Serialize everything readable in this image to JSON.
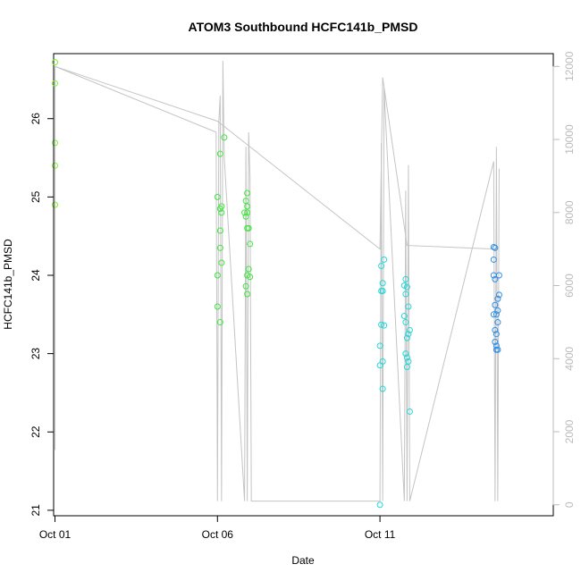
{
  "chart_data": {
    "type": "scatter",
    "title": "ATOM3 Southbound HCFC141b_PMSD",
    "xlabel": "Date",
    "ylabel": "HCFC141b_PMSD",
    "xlim": [
      "2016-09-30T23:00",
      "2016-10-16T08:00"
    ],
    "ylim": [
      20.93,
      26.83
    ],
    "y2lim": [
      -300,
      12350
    ],
    "x_ticks": [
      {
        "label": "Oct 01",
        "value": "2016-10-01T00:00"
      },
      {
        "label": "Oct 06",
        "value": "2016-10-06T00:00"
      },
      {
        "label": "Oct 11",
        "value": "2016-10-11T00:00"
      }
    ],
    "y_ticks": [
      21,
      22,
      23,
      24,
      25,
      26
    ],
    "y2_ticks": [
      0,
      2000,
      4000,
      6000,
      8000,
      10000,
      12000
    ],
    "colors": {
      "frame": "#000000",
      "secondary_axis": "#bbbbbb",
      "secondary_lines": "#c4c4c4",
      "group_1": "#7fef2f",
      "group_2": "#3fe63f",
      "group_3": "#22d8d8",
      "group_4": "#2f8fe6"
    },
    "series": [
      {
        "color": "#7fef2f",
        "points": [
          {
            "x": "2016-10-01T00:00",
            "y": 26.72
          },
          {
            "x": "2016-10-01T00:00",
            "y": 26.45
          },
          {
            "x": "2016-10-01T00:00",
            "y": 25.69
          },
          {
            "x": "2016-10-01T00:00",
            "y": 25.4
          },
          {
            "x": "2016-10-01T00:00",
            "y": 24.9
          }
        ]
      },
      {
        "color": "#3fe63f",
        "points": [
          {
            "x": "2016-10-06T00:00",
            "y": 25.0
          },
          {
            "x": "2016-10-06T02:00",
            "y": 24.85
          },
          {
            "x": "2016-10-06T03:00",
            "y": 24.8
          },
          {
            "x": "2016-10-06T03:00",
            "y": 24.88
          },
          {
            "x": "2016-10-06T02:00",
            "y": 25.55
          },
          {
            "x": "2016-10-06T05:00",
            "y": 25.76
          },
          {
            "x": "2016-10-06T02:00",
            "y": 24.57
          },
          {
            "x": "2016-10-06T02:00",
            "y": 24.35
          },
          {
            "x": "2016-10-06T03:00",
            "y": 24.16
          },
          {
            "x": "2016-10-06T00:00",
            "y": 24.0
          },
          {
            "x": "2016-10-06T00:00",
            "y": 23.6
          },
          {
            "x": "2016-10-06T02:00",
            "y": 23.4
          },
          {
            "x": "2016-10-06T20:00",
            "y": 24.8
          },
          {
            "x": "2016-10-06T21:00",
            "y": 24.75
          },
          {
            "x": "2016-10-06T22:00",
            "y": 24.8
          },
          {
            "x": "2016-10-06T22:00",
            "y": 25.05
          },
          {
            "x": "2016-10-06T21:00",
            "y": 24.95
          },
          {
            "x": "2016-10-06T22:00",
            "y": 24.88
          },
          {
            "x": "2016-10-06T22:00",
            "y": 24.6
          },
          {
            "x": "2016-10-06T23:00",
            "y": 24.6
          },
          {
            "x": "2016-10-07T00:00",
            "y": 24.4
          },
          {
            "x": "2016-10-06T23:00",
            "y": 24.08
          },
          {
            "x": "2016-10-06T22:00",
            "y": 24.0
          },
          {
            "x": "2016-10-07T00:00",
            "y": 23.98
          },
          {
            "x": "2016-10-06T21:00",
            "y": 23.86
          },
          {
            "x": "2016-10-06T22:00",
            "y": 23.76
          }
        ]
      },
      {
        "color": "#22d8d8",
        "points": [
          {
            "x": "2016-10-11T00:00",
            "y": 21.07
          },
          {
            "x": "2016-10-11T02:00",
            "y": 22.55
          },
          {
            "x": "2016-10-11T00:00",
            "y": 22.85
          },
          {
            "x": "2016-10-11T02:00",
            "y": 22.9
          },
          {
            "x": "2016-10-11T00:00",
            "y": 23.1
          },
          {
            "x": "2016-10-11T01:00",
            "y": 23.37
          },
          {
            "x": "2016-10-11T03:00",
            "y": 23.36
          },
          {
            "x": "2016-10-11T01:00",
            "y": 23.8
          },
          {
            "x": "2016-10-11T02:00",
            "y": 23.8
          },
          {
            "x": "2016-10-11T02:00",
            "y": 23.9
          },
          {
            "x": "2016-10-11T01:00",
            "y": 24.12
          },
          {
            "x": "2016-10-11T03:00",
            "y": 24.2
          },
          {
            "x": "2016-10-11T18:00",
            "y": 23.87
          },
          {
            "x": "2016-10-11T19:00",
            "y": 23.95
          },
          {
            "x": "2016-10-11T20:00",
            "y": 23.85
          },
          {
            "x": "2016-10-11T19:00",
            "y": 23.76
          },
          {
            "x": "2016-10-11T21:00",
            "y": 23.6
          },
          {
            "x": "2016-10-11T18:00",
            "y": 23.48
          },
          {
            "x": "2016-10-11T19:00",
            "y": 23.4
          },
          {
            "x": "2016-10-11T22:00",
            "y": 23.3
          },
          {
            "x": "2016-10-11T21:00",
            "y": 23.25
          },
          {
            "x": "2016-10-11T20:00",
            "y": 23.2
          },
          {
            "x": "2016-10-11T19:00",
            "y": 23.0
          },
          {
            "x": "2016-10-11T20:00",
            "y": 22.95
          },
          {
            "x": "2016-10-11T21:00",
            "y": 22.9
          },
          {
            "x": "2016-10-11T20:00",
            "y": 22.83
          },
          {
            "x": "2016-10-11T22:00",
            "y": 22.26
          }
        ]
      },
      {
        "color": "#2f8fe6",
        "points": [
          {
            "x": "2016-10-14T12:00",
            "y": 24.36
          },
          {
            "x": "2016-10-14T13:00",
            "y": 24.35
          },
          {
            "x": "2016-10-14T12:00",
            "y": 24.2
          },
          {
            "x": "2016-10-14T12:00",
            "y": 24.0
          },
          {
            "x": "2016-10-14T13:00",
            "y": 23.95
          },
          {
            "x": "2016-10-14T16:00",
            "y": 24.0
          },
          {
            "x": "2016-10-14T16:00",
            "y": 23.75
          },
          {
            "x": "2016-10-14T15:00",
            "y": 23.7
          },
          {
            "x": "2016-10-14T13:00",
            "y": 23.62
          },
          {
            "x": "2016-10-14T15:00",
            "y": 23.55
          },
          {
            "x": "2016-10-14T12:00",
            "y": 23.5
          },
          {
            "x": "2016-10-14T14:00",
            "y": 23.5
          },
          {
            "x": "2016-10-14T15:00",
            "y": 23.4
          },
          {
            "x": "2016-10-14T13:00",
            "y": 23.3
          },
          {
            "x": "2016-10-14T14:00",
            "y": 23.25
          },
          {
            "x": "2016-10-14T13:00",
            "y": 23.15
          },
          {
            "x": "2016-10-14T14:00",
            "y": 23.1
          },
          {
            "x": "2016-10-14T14:00",
            "y": 23.05
          },
          {
            "x": "2016-10-14T15:00",
            "y": 23.05
          }
        ]
      }
    ],
    "secondary_lines": [
      {
        "name": "spikes",
        "x": [
          "2016-10-01T00:00",
          "2016-10-01T00:00",
          "2016-10-05T23:00",
          "2016-10-06T00:00",
          "2016-10-06T01:00",
          "2016-10-06T02:00",
          "2016-10-06T03:00",
          "2016-10-06T04:00",
          "2016-10-06T05:00",
          "2016-10-06T20:00",
          "2016-10-06T21:00",
          "2016-10-06T22:00",
          "2016-10-06T23:00",
          "2016-10-07T00:00",
          "2016-10-07T01:00",
          "2016-10-11T00:00",
          "2016-10-11T01:00",
          "2016-10-11T02:00",
          "2016-10-11T03:00",
          "2016-10-11T18:00",
          "2016-10-11T19:00",
          "2016-10-11T20:00",
          "2016-10-11T21:00",
          "2016-10-11T22:00",
          "2016-10-14T12:00",
          "2016-10-14T13:00",
          "2016-10-14T14:00",
          "2016-10-14T15:00",
          "2016-10-14T16:00"
        ],
        "y": [
          1500,
          12000,
          10200,
          100,
          10500,
          11200,
          100,
          12150,
          9500,
          100,
          9800,
          100,
          10200,
          9000,
          100,
          100,
          9900,
          100,
          11400,
          100,
          8600,
          100,
          9300,
          100,
          9400,
          100,
          9800,
          100,
          9200
        ]
      },
      {
        "name": "trend",
        "x": [
          "2016-10-01T00:00",
          "2016-10-06T00:00",
          "2016-10-11T00:00",
          "2016-10-11T02:00",
          "2016-10-11T20:00",
          "2016-10-14T13:00"
        ],
        "y": [
          12000,
          10500,
          7000,
          11700,
          7100,
          7000
        ]
      }
    ]
  }
}
